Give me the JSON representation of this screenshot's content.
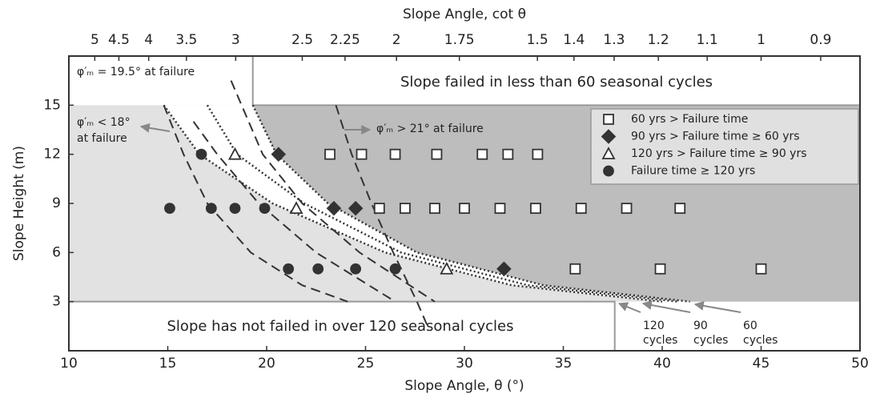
{
  "chart_data": {
    "type": "scatter",
    "x2label": "Slope Angle, cot θ",
    "xlabel": "Slope Angle, θ (°)",
    "ylabel": "Slope Height (m)",
    "xlim": [
      10,
      50
    ],
    "ylim": [
      0,
      18
    ],
    "xticks": [
      10,
      15,
      20,
      25,
      30,
      35,
      40,
      45,
      50
    ],
    "yticks": [
      3,
      6,
      9,
      12,
      15
    ],
    "x2scale": "cot",
    "x2ticks": [
      5,
      4.5,
      4,
      3.5,
      3,
      2.5,
      2.25,
      2,
      1.75,
      1.5,
      1.4,
      1.3,
      1.2,
      1.1,
      1,
      0.9
    ],
    "legend": "upper right",
    "shaded_band": [
      3,
      15
    ],
    "lower_region_xmax": 37.6,
    "failed_region_text": "Slope failed in less than 60 seasonal cycles",
    "not_failed_region_text": "Slope has not failed in over 120 seasonal cycles",
    "series": [
      {
        "name": "60 yrs > Failure time",
        "marker": "square",
        "filled": false,
        "color": "#333333",
        "x": [
          23.2,
          24.8,
          26.5,
          28.6,
          30.9,
          32.2,
          33.7,
          25.7,
          27,
          28.5,
          30,
          31.8,
          33.6,
          35.9,
          38.2,
          40.9,
          35.6,
          39.9,
          45
        ],
        "values": [
          12,
          12,
          12,
          12,
          12,
          12,
          12,
          8.7,
          8.7,
          8.7,
          8.7,
          8.7,
          8.7,
          8.7,
          8.7,
          8.7,
          5,
          5,
          5
        ]
      },
      {
        "name": "90 yrs > Failure time ≥ 60 yrs",
        "marker": "diamond",
        "filled": true,
        "color": "#333333",
        "x": [
          20.6,
          23.4,
          24.5,
          32
        ],
        "values": [
          12,
          8.7,
          8.7,
          5
        ]
      },
      {
        "name": "120 yrs > Failure time ≥ 90 yrs",
        "marker": "triangle",
        "filled": false,
        "color": "#333333",
        "x": [
          18.4,
          21.5,
          29.1
        ],
        "values": [
          12,
          8.7,
          5
        ]
      },
      {
        "name": "Failure time ≥ 120 yrs",
        "marker": "circle",
        "filled": true,
        "color": "#333333",
        "x": [
          16.7,
          15.1,
          17.2,
          18.4,
          19.9,
          21.1,
          22.6,
          24.5,
          26.5
        ],
        "values": [
          12,
          8.7,
          8.7,
          8.7,
          8.7,
          5,
          5,
          5,
          5
        ]
      }
    ],
    "curves": [
      {
        "label_lines": [
          "120",
          "cycles"
        ],
        "x": [
          14.8,
          16.6,
          20.3,
          26,
          32.4,
          40
        ],
        "values": [
          15,
          12,
          9,
          6,
          4,
          3
        ]
      },
      {
        "label_lines": [
          "90",
          "cycles"
        ],
        "x": [
          17,
          18.5,
          21.9,
          26.8,
          33.2,
          40.8
        ],
        "values": [
          15,
          12,
          9,
          6,
          4,
          3
        ]
      },
      {
        "label_lines": [
          "60",
          "cycles"
        ],
        "x": [
          19.3,
          20.5,
          23.1,
          27.6,
          34,
          41.4
        ],
        "values": [
          15,
          12,
          9,
          6,
          4,
          3
        ]
      }
    ],
    "dashed_lines": [
      {
        "x": [
          14.8,
          15.8,
          17,
          19.2,
          21.8,
          24.1
        ],
        "values": [
          15,
          12,
          9,
          6,
          4,
          3
        ]
      },
      {
        "x": [
          16.3,
          17.5,
          19.6,
          22.5,
          26.5
        ],
        "values": [
          14,
          12,
          9,
          6,
          3
        ]
      },
      {
        "x": [
          18.2,
          19.8,
          21.8,
          24.7,
          28.5
        ],
        "values": [
          16.5,
          12,
          9,
          6,
          3
        ]
      },
      {
        "x": [
          23.5,
          24.3,
          25.3,
          26.4,
          27.6,
          28.1
        ],
        "values": [
          15,
          12,
          9,
          6,
          3,
          1.6
        ]
      }
    ],
    "annotations": [
      {
        "lines": [
          "φ′ₘ = 19.5° at failure"
        ]
      },
      {
        "lines": [
          "φ′ₘ < 18°",
          "at failure"
        ]
      },
      {
        "lines": [
          "φ′ₘ > 21° at failure"
        ]
      }
    ]
  }
}
